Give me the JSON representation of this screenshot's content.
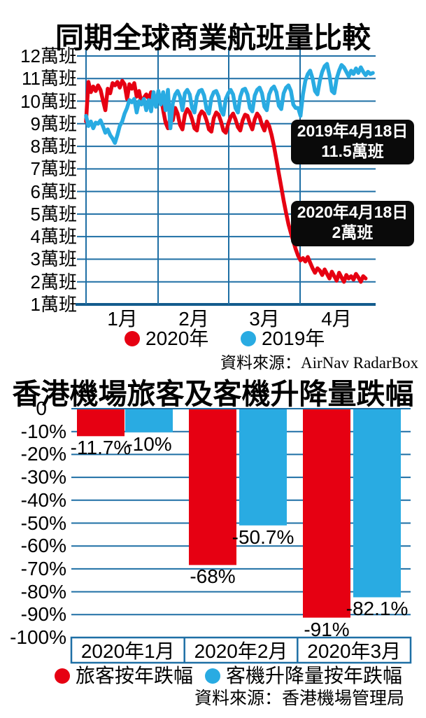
{
  "colors": {
    "red": "#e60012",
    "blue": "#29abe2",
    "grid": "#1e6fa5",
    "axis": "#135c8d",
    "annotation_bg": "#0a0a0a",
    "annotation_text": "#ffffff"
  },
  "chart_data": [
    {
      "type": "line",
      "title": "同期全球商業航班量比較",
      "y_unit": "萬班",
      "ylim": [
        1,
        12
      ],
      "grid": true,
      "legend_position": "bottom",
      "y_tick_labels": [
        "12萬班",
        "11萬班",
        "10萬班",
        "9萬班",
        "8萬班",
        "7萬班",
        "6萬班",
        "5萬班",
        "4萬班",
        "3萬班",
        "2萬班",
        "1萬班"
      ],
      "y_tick_values": [
        12,
        11,
        10,
        9,
        8,
        7,
        6,
        5,
        4,
        3,
        2,
        1
      ],
      "x_tick_labels": [
        "1月",
        "2月",
        "3月",
        "4月"
      ],
      "series": [
        {
          "name": "2020年",
          "color": "#e60012",
          "values": [
            9.1,
            10.85,
            10.4,
            10.65,
            10.45,
            10.7,
            10.5,
            10.05,
            9.6,
            10.55,
            10.35,
            10.8,
            10.7,
            10.85,
            10.6,
            10.9,
            10.75,
            10.1,
            10.75,
            10.55,
            10.8,
            10.2,
            10.45,
            9.9,
            10.15,
            10.3,
            10.1,
            10.4,
            10.25,
            10.15,
            10.1,
            10.25,
            9.6,
            9.05,
            8.8,
            9.3,
            9.15,
            9.7,
            9.45,
            8.95,
            8.75,
            9.4,
            9.65,
            9.5,
            9.2,
            8.8,
            8.7,
            9.35,
            9.55,
            9.45,
            9.15,
            8.75,
            8.65,
            9.25,
            9.5,
            9.4,
            9.1,
            8.7,
            8.6,
            9.0,
            9.3,
            9.45,
            9.2,
            8.85,
            8.7,
            9.15,
            9.4,
            9.35,
            9.0,
            8.75,
            9.2,
            9.45,
            9.3,
            8.95,
            8.7,
            9.1,
            8.9,
            8.5,
            8.0,
            7.4,
            6.8,
            6.2,
            5.6,
            5.05,
            4.55,
            4.15,
            3.8,
            3.45,
            3.15,
            2.95,
            3.05,
            2.9,
            3.1,
            2.85,
            2.6,
            2.4,
            2.6,
            2.5,
            2.3,
            2.55,
            2.35,
            2.15,
            2.45,
            2.25,
            2.05,
            2.4,
            2.2,
            2.0,
            2.3,
            2.15,
            2.25,
            2.1,
            2.35,
            2.2,
            2.0,
            2.25,
            2.15
          ]
        },
        {
          "name": "2019年",
          "color": "#29abe2",
          "values": [
            9.35,
            8.9,
            9.1,
            8.8,
            9.05,
            9.0,
            9.15,
            8.9,
            8.6,
            8.75,
            8.5,
            8.35,
            8.15,
            8.5,
            8.9,
            9.1,
            9.45,
            9.7,
            10.05,
            9.95,
            10.1,
            9.5,
            10.0,
            9.85,
            10.1,
            9.6,
            10.05,
            9.55,
            10.4,
            9.75,
            10.45,
            9.85,
            10.4,
            9.6,
            10.5,
            8.8,
            9.9,
            10.3,
            10.45,
            10.2,
            9.6,
            10.35,
            10.5,
            10.3,
            9.7,
            9.5,
            10.2,
            10.45,
            10.5,
            10.25,
            9.65,
            9.45,
            10.15,
            10.4,
            10.45,
            10.2,
            9.6,
            9.4,
            10.1,
            10.35,
            10.5,
            10.3,
            9.7,
            9.5,
            10.2,
            10.5,
            10.55,
            10.3,
            9.7,
            9.55,
            10.25,
            10.5,
            10.6,
            10.35,
            9.75,
            9.6,
            10.3,
            10.55,
            10.65,
            10.4,
            9.8,
            9.65,
            10.35,
            10.6,
            10.7,
            10.45,
            9.85,
            9.7,
            9.7,
            9.35,
            10.3,
            10.9,
            11.2,
            11.35,
            11.0,
            10.45,
            10.3,
            10.9,
            11.3,
            11.55,
            11.65,
            11.15,
            10.45,
            10.35,
            11.0,
            11.35,
            11.6,
            11.5,
            11.3,
            11.1,
            11.35,
            11.2,
            11.45,
            11.25,
            11.5,
            11.3,
            11.15,
            11.3,
            11.2,
            11.25
          ]
        }
      ],
      "annotations": [
        {
          "text_line1": "2019年4月18日",
          "text_line2": "11.5萬班",
          "value": 11.5
        },
        {
          "text_line1": "2020年4月18日",
          "text_line2": "2萬班",
          "value": 2
        }
      ],
      "source": "資料來源：AirNav RadarBox"
    },
    {
      "type": "bar",
      "title": "香港機場旅客及客機升降量跌幅",
      "ylim": [
        -100,
        0
      ],
      "grid": true,
      "legend_position": "bottom",
      "y_tick_labels": [
        "0",
        "-10%",
        "-20%",
        "-30%",
        "-40%",
        "-50%",
        "-60%",
        "-70%",
        "-80%",
        "-90%",
        "-100%"
      ],
      "categories": [
        "2020年1月",
        "2020年2月",
        "2020年3月"
      ],
      "series": [
        {
          "name": "旅客按年跌幅",
          "color": "#e60012",
          "values": [
            -11.7,
            -68,
            -91
          ],
          "labels": [
            "-11.7%",
            "-68%",
            "-91%"
          ]
        },
        {
          "name": "客機升降量按年跌幅",
          "color": "#29abe2",
          "values": [
            -10,
            -50.7,
            -82.1
          ],
          "labels": [
            "-10%",
            "-50.7%",
            "-82.1%"
          ]
        }
      ],
      "source": "資料來源：香港機場管理局"
    }
  ]
}
